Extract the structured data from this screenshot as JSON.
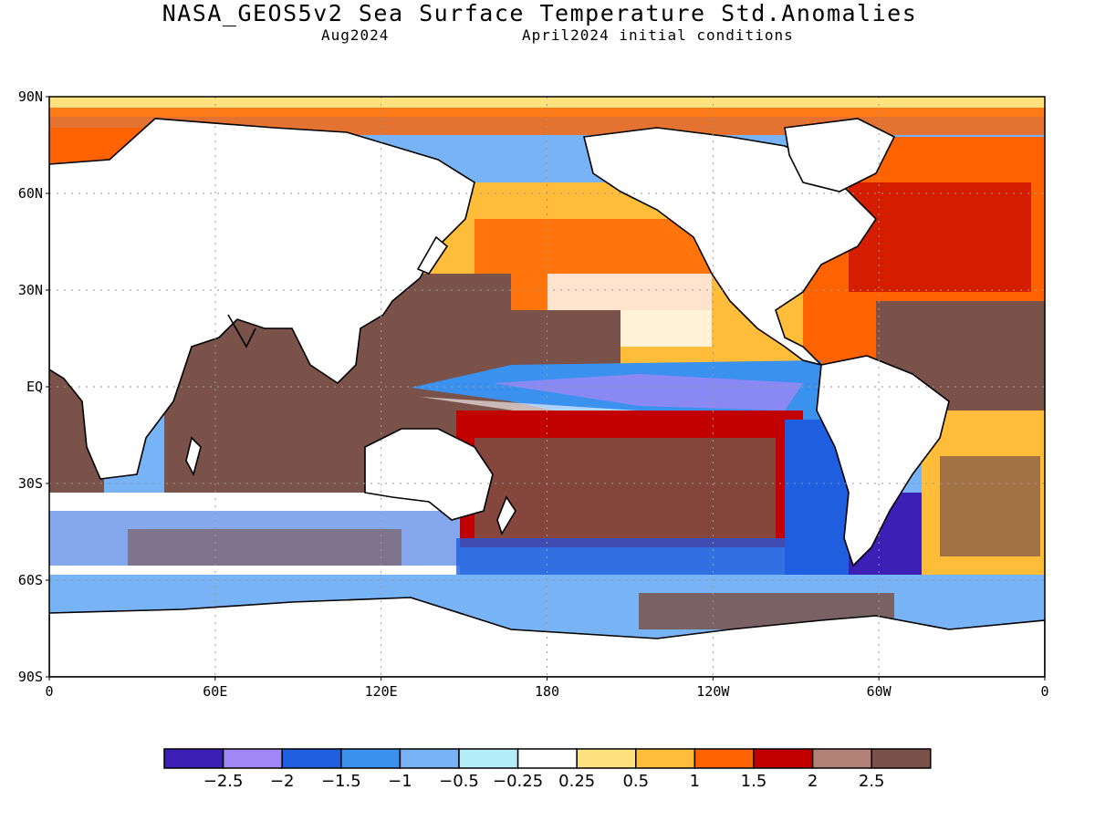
{
  "header": {
    "title": "NASA_GEOS5v2 Sea Surface Temperature Std.Anomalies",
    "valid_month": "Aug2024",
    "init": "April2024 initial conditions"
  },
  "map": {
    "projection": "cylindrical equidistant",
    "lon_range": [
      0,
      360
    ],
    "lat_range": [
      -90,
      90
    ],
    "gridlines": "dotted",
    "lat_ticks": [
      {
        "value": 90,
        "label": "90N"
      },
      {
        "value": 60,
        "label": "60N"
      },
      {
        "value": 30,
        "label": "30N"
      },
      {
        "value": 0,
        "label": "EQ"
      },
      {
        "value": -30,
        "label": "30S"
      },
      {
        "value": -60,
        "label": "60S"
      },
      {
        "value": -90,
        "label": "90S"
      }
    ],
    "lon_ticks": [
      {
        "value": 0,
        "label": "0"
      },
      {
        "value": 60,
        "label": "60E"
      },
      {
        "value": 120,
        "label": "120E"
      },
      {
        "value": 180,
        "label": "180"
      },
      {
        "value": 240,
        "label": "120W"
      },
      {
        "value": 300,
        "label": "60W"
      },
      {
        "value": 360,
        "label": "0"
      }
    ]
  },
  "colorbar": {
    "colors": [
      "#3c1fb4",
      "#9f87f5",
      "#1f5fdf",
      "#3b91ee",
      "#78b4f5",
      "#b4ecfa",
      "#ffffff",
      "#ffe27e",
      "#ffbd3a",
      "#ff6200",
      "#c30000",
      "#b28277",
      "#7a5249"
    ],
    "labels": [
      "−2.5",
      "−2",
      "−1.5",
      "−1",
      "−0.5",
      "−0.25",
      "0.25",
      "0.5",
      "1",
      "1.5",
      "2",
      "2.5"
    ]
  }
}
